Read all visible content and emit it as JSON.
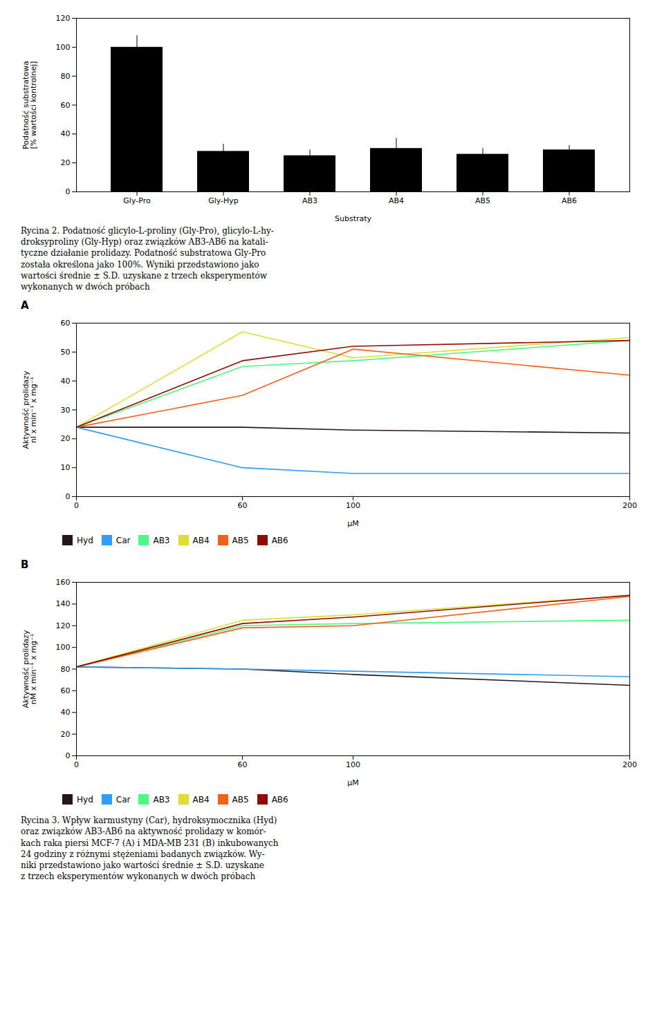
{
  "chart_data": [
    {
      "type": "bar",
      "categories": [
        "Gly-Pro",
        "Gly-Hyp",
        "AB3",
        "AB4",
        "AB5",
        "AB6"
      ],
      "values": [
        100,
        28,
        25,
        30,
        26,
        29
      ],
      "errors": [
        8,
        5,
        4,
        7,
        4,
        3
      ],
      "xlabel": "Substraty",
      "ylabel": "Podatność substratowa\n[% wartości kontrolnej]",
      "ylim": [
        0,
        120
      ],
      "yticks": [
        0,
        20,
        40,
        60,
        80,
        100,
        120
      ],
      "grid": false,
      "caption": "Rycina 2. Podatność glicylo-L-proliny (Gly-Pro), glicylo-L-hy-\ndroksyproliny (Gly-Hyp) oraz związków AB3-AB6 na katali-\ntyczne działanie prolidazy. Podatność substratowa Gly-Pro\nzostała określona jako 100%. Wyniki przedstawiono jako\nwartości średnie ± S.D. uzyskane z trzech eksperymentów\nwykonanych w dwóch próbach"
    },
    {
      "type": "line",
      "title": "A",
      "xlabel": "μM",
      "ylabel": "Aktywność prolidazy\nnl x min⁻¹ x mg⁻¹",
      "xlim": [
        0,
        200
      ],
      "xticks": [
        0,
        60,
        100,
        200
      ],
      "ylim": [
        0,
        60
      ],
      "yticks": [
        0,
        10,
        20,
        30,
        40,
        50,
        60
      ],
      "grid": false,
      "legend": "bottom",
      "x": [
        0,
        60,
        100,
        200
      ],
      "series": [
        {
          "name": "Hyd",
          "values": [
            24,
            24,
            23,
            22
          ]
        },
        {
          "name": "Car",
          "values": [
            24,
            10,
            8,
            8
          ]
        },
        {
          "name": "AB3",
          "values": [
            24,
            45,
            47,
            54
          ]
        },
        {
          "name": "AB4",
          "values": [
            24,
            57,
            48,
            55
          ]
        },
        {
          "name": "AB5",
          "values": [
            24,
            35,
            51,
            42
          ]
        },
        {
          "name": "AB6",
          "values": [
            24,
            47,
            52,
            54
          ]
        }
      ]
    },
    {
      "type": "line",
      "title": "B",
      "xlabel": "μM",
      "ylabel": "Aktywność prolidazy\nnM x min⁻¹ x mg⁻¹",
      "xlim": [
        0,
        200
      ],
      "xticks": [
        0,
        60,
        100,
        200
      ],
      "ylim": [
        0,
        160
      ],
      "yticks": [
        0,
        20,
        40,
        60,
        80,
        100,
        120,
        140,
        160
      ],
      "grid": false,
      "legend": "bottom",
      "x": [
        0,
        60,
        100,
        200
      ],
      "series": [
        {
          "name": "Hyd",
          "values": [
            82,
            80,
            75,
            65
          ]
        },
        {
          "name": "Car",
          "values": [
            82,
            80,
            78,
            73
          ]
        },
        {
          "name": "AB3",
          "values": [
            82,
            120,
            122,
            125
          ]
        },
        {
          "name": "AB4",
          "values": [
            82,
            125,
            130,
            148
          ]
        },
        {
          "name": "AB5",
          "values": [
            82,
            118,
            120,
            147
          ]
        },
        {
          "name": "AB6",
          "values": [
            82,
            122,
            128,
            148
          ]
        }
      ],
      "caption": "Rycina 3. Wpływ karmustyny (Car), hydroksymocznika (Hyd)\noraz związków AB3-AB6 na aktywność prolidazy w komór-\nkach raka piersi MCF-7 (A) i MDA-MB 231 (B) inkubowanych\n24 godziny z różnymi stężeniami badanych związków. Wy-\nniki przedstawiono jako wartości średnie ± S.D. uzyskane\nz trzech eksperymentów wykonanych w dwóch próbach"
    }
  ]
}
